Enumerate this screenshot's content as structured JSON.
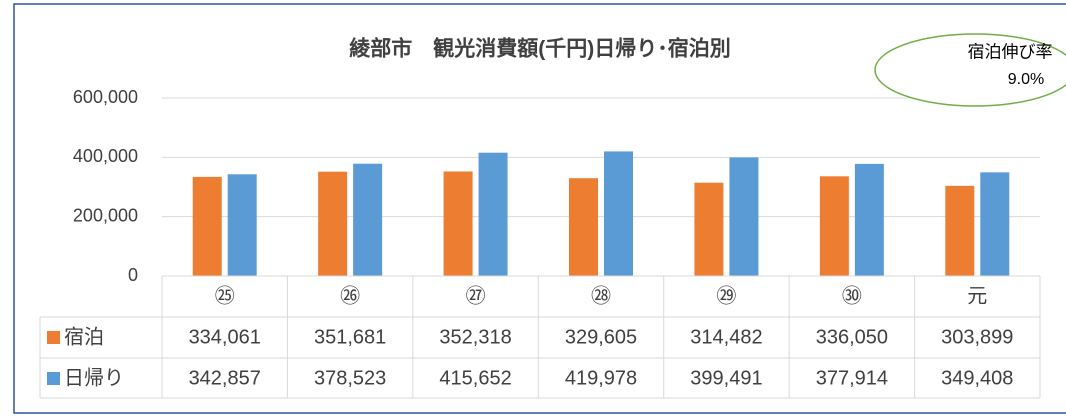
{
  "chart_data": {
    "type": "bar",
    "title": "綾部市　観光消費額(千円)日帰り･宿泊別",
    "annotation": {
      "label": "宿泊伸び率",
      "value": "9.0%"
    },
    "categories": [
      "㉕",
      "㉖",
      "㉗",
      "㉘",
      "㉙",
      "㉚",
      "元"
    ],
    "series": [
      {
        "name": "宿泊",
        "color": "#ed7d31",
        "values": [
          334061,
          351681,
          352318,
          329605,
          314482,
          336050,
          303899
        ],
        "value_labels": [
          "334,061",
          "351,681",
          "352,318",
          "329,605",
          "314,482",
          "336,050",
          "303,899"
        ]
      },
      {
        "name": "日帰り",
        "color": "#5b9bd5",
        "values": [
          342857,
          378523,
          415652,
          419978,
          399491,
          377914,
          349408
        ],
        "value_labels": [
          "342,857",
          "378,523",
          "415,652",
          "419,978",
          "399,491",
          "377,914",
          "349,408"
        ]
      }
    ],
    "ylim": [
      0,
      600000
    ],
    "yticks": [
      0,
      {
        "value": 200000,
        "label": "200,000"
      },
      {
        "value": 400000,
        "label": "400,000"
      },
      {
        "value": 600000,
        "label": "600,000"
      }
    ],
    "grid": true
  }
}
